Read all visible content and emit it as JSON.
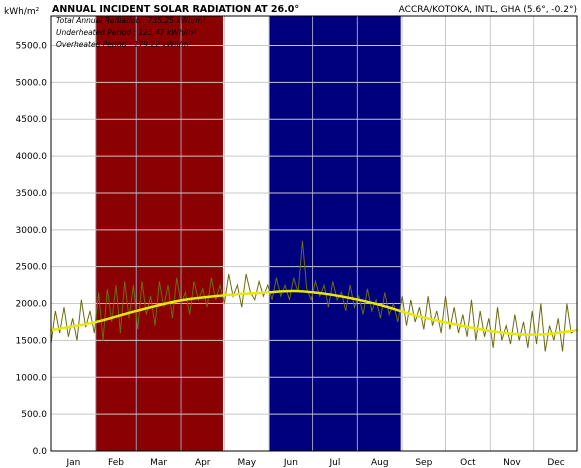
{
  "chart_data": {
    "type": "line",
    "title": "ANNUAL INCIDENT SOLAR RADIATION AT 26.0°",
    "location": "ACCRA/KOTOKA, INTL, GHA (5.6°, -0.2°)",
    "y_unit": "kWh/m²",
    "legend_lines": [
      "Total Annual Radiation : 735.25 kWh/m²",
      "Underheated Period : 125.47 kWh/m²",
      "Overheated Period : 179.22 kWh/m²"
    ],
    "ylim": [
      0,
      5900
    ],
    "yticks": [
      "0.0",
      "500.0",
      "1000.0",
      "1500.0",
      "2000.0",
      "2500.0",
      "3000.0",
      "3500.0",
      "4000.0",
      "4500.0",
      "5000.0",
      "5500.0"
    ],
    "categories": [
      "Jan",
      "Feb",
      "Mar",
      "Apr",
      "May",
      "Jun",
      "Jul",
      "Aug",
      "Sep",
      "Oct",
      "Nov",
      "Dec"
    ],
    "periods": [
      {
        "name": "Overheated Period",
        "color": "#8b0000",
        "start_day": 32,
        "end_day": 120
      },
      {
        "name": "Underheated Period",
        "color": "#00007f",
        "start_day": 152,
        "end_day": 243
      }
    ],
    "grid": true,
    "series": [
      {
        "color": "#e8e800",
        "style": "smoothed",
        "points": [
          [
            1,
            1640
          ],
          [
            30,
            1740
          ],
          [
            60,
            1900
          ],
          [
            90,
            2040
          ],
          [
            120,
            2110
          ],
          [
            150,
            2150
          ],
          [
            170,
            2170
          ],
          [
            195,
            2120
          ],
          [
            225,
            2000
          ],
          [
            255,
            1830
          ],
          [
            285,
            1700
          ],
          [
            315,
            1600
          ],
          [
            340,
            1580
          ],
          [
            365,
            1640
          ]
        ]
      },
      {
        "color": "#6b6b10",
        "style": "daily",
        "points": [
          [
            1,
            1450
          ],
          [
            4,
            1900
          ],
          [
            7,
            1600
          ],
          [
            10,
            1950
          ],
          [
            13,
            1550
          ],
          [
            16,
            1800
          ],
          [
            19,
            1500
          ],
          [
            22,
            2050
          ],
          [
            25,
            1680
          ],
          [
            28,
            1900
          ],
          [
            31,
            1600
          ],
          [
            34,
            2150
          ],
          [
            37,
            1500
          ],
          [
            40,
            2200
          ],
          [
            43,
            1750
          ],
          [
            46,
            2250
          ],
          [
            49,
            1600
          ],
          [
            52,
            2300
          ],
          [
            55,
            1800
          ],
          [
            58,
            2250
          ],
          [
            61,
            1650
          ],
          [
            64,
            2300
          ],
          [
            67,
            1850
          ],
          [
            70,
            2100
          ],
          [
            73,
            1700
          ],
          [
            76,
            2300
          ],
          [
            79,
            1950
          ],
          [
            82,
            2250
          ],
          [
            85,
            1800
          ],
          [
            88,
            2350
          ],
          [
            91,
            2000
          ],
          [
            94,
            2150
          ],
          [
            97,
            1850
          ],
          [
            100,
            2300
          ],
          [
            103,
            2050
          ],
          [
            106,
            2200
          ],
          [
            109,
            1950
          ],
          [
            112,
            2350
          ],
          [
            115,
            2050
          ],
          [
            118,
            2250
          ],
          [
            121,
            2000
          ],
          [
            124,
            2400
          ],
          [
            127,
            2100
          ],
          [
            130,
            2250
          ],
          [
            133,
            1950
          ],
          [
            136,
            2400
          ],
          [
            139,
            2150
          ],
          [
            142,
            2050
          ],
          [
            145,
            2300
          ],
          [
            148,
            2100
          ],
          [
            151,
            2250
          ],
          [
            154,
            2050
          ],
          [
            157,
            2350
          ],
          [
            160,
            2100
          ],
          [
            163,
            2250
          ],
          [
            166,
            2050
          ],
          [
            169,
            2350
          ],
          [
            172,
            2150
          ],
          [
            175,
            2850
          ],
          [
            178,
            2200
          ],
          [
            181,
            2050
          ],
          [
            184,
            2300
          ],
          [
            187,
            2100
          ],
          [
            190,
            2250
          ],
          [
            193,
            1950
          ],
          [
            196,
            2300
          ],
          [
            199,
            2050
          ],
          [
            202,
            2150
          ],
          [
            205,
            1900
          ],
          [
            208,
            2250
          ],
          [
            211,
            1950
          ],
          [
            214,
            2100
          ],
          [
            217,
            1850
          ],
          [
            220,
            2200
          ],
          [
            223,
            1900
          ],
          [
            226,
            2050
          ],
          [
            229,
            1800
          ],
          [
            232,
            2150
          ],
          [
            235,
            1850
          ],
          [
            238,
            2000
          ],
          [
            241,
            1750
          ],
          [
            244,
            2100
          ],
          [
            247,
            1700
          ],
          [
            250,
            2050
          ],
          [
            253,
            1750
          ],
          [
            256,
            1950
          ],
          [
            259,
            1650
          ],
          [
            262,
            2100
          ],
          [
            265,
            1700
          ],
          [
            268,
            1900
          ],
          [
            271,
            1600
          ],
          [
            274,
            2100
          ],
          [
            277,
            1650
          ],
          [
            280,
            1950
          ],
          [
            283,
            1600
          ],
          [
            286,
            1850
          ],
          [
            289,
            1550
          ],
          [
            292,
            2050
          ],
          [
            295,
            1500
          ],
          [
            298,
            1900
          ],
          [
            301,
            1550
          ],
          [
            304,
            1800
          ],
          [
            307,
            1400
          ],
          [
            310,
            1950
          ],
          [
            313,
            1500
          ],
          [
            316,
            1700
          ],
          [
            319,
            1450
          ],
          [
            322,
            1850
          ],
          [
            325,
            1500
          ],
          [
            328,
            1750
          ],
          [
            331,
            1400
          ],
          [
            334,
            1900
          ],
          [
            337,
            1450
          ],
          [
            340,
            2000
          ],
          [
            343,
            1350
          ],
          [
            346,
            1700
          ],
          [
            349,
            1500
          ],
          [
            352,
            1800
          ],
          [
            355,
            1350
          ],
          [
            358,
            2000
          ],
          [
            361,
            1600
          ],
          [
            365,
            1650
          ]
        ]
      }
    ]
  }
}
